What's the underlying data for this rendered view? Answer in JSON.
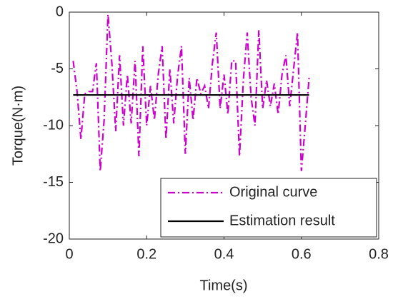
{
  "chart_data": {
    "type": "line",
    "xlabel": "Time(s)",
    "ylabel": "Torque(N·m)",
    "xlim": [
      0,
      0.8
    ],
    "xticks": [
      0,
      0.2,
      0.4,
      0.6,
      0.8
    ],
    "ylim": [
      -20,
      0
    ],
    "yticks": [
      0,
      -5,
      -10,
      -15,
      -20
    ],
    "legend": "lower right",
    "series": [
      {
        "name": "Original curve",
        "color": "#cc00cc",
        "dash": "dashdot",
        "x": [
          0.01,
          0.02,
          0.03,
          0.04,
          0.05,
          0.06,
          0.07,
          0.08,
          0.09,
          0.1,
          0.11,
          0.12,
          0.13,
          0.14,
          0.15,
          0.16,
          0.17,
          0.18,
          0.19,
          0.2,
          0.21,
          0.22,
          0.23,
          0.24,
          0.25,
          0.26,
          0.27,
          0.28,
          0.29,
          0.3,
          0.31,
          0.32,
          0.33,
          0.34,
          0.35,
          0.36,
          0.37,
          0.38,
          0.39,
          0.4,
          0.41,
          0.42,
          0.43,
          0.44,
          0.45,
          0.46,
          0.47,
          0.48,
          0.49,
          0.5,
          0.51,
          0.52,
          0.53,
          0.54,
          0.55,
          0.56,
          0.57,
          0.58,
          0.59,
          0.6,
          0.61,
          0.62
        ],
        "values": [
          -4.3,
          -7.0,
          -11.2,
          -7.2,
          -7.0,
          -7.0,
          -4.5,
          -14.0,
          -9.5,
          -0.2,
          -4.5,
          -10.5,
          -3.8,
          -10.0,
          -5.5,
          -9.8,
          -4.3,
          -12.7,
          -3.0,
          -10.0,
          -6.5,
          -9.5,
          -5.5,
          -3.0,
          -11.2,
          -5.0,
          -9.8,
          -5.6,
          -3.0,
          -12.5,
          -5.8,
          -9.5,
          -5.8,
          -7.2,
          -6.5,
          -8.5,
          -4.5,
          -1.8,
          -8.5,
          -5.5,
          -9.0,
          -4.3,
          -4.3,
          -12.7,
          -6.0,
          -1.8,
          -7.5,
          -10.0,
          -1.6,
          -8.5,
          -6.0,
          -8.3,
          -6.3,
          -9.0,
          -5.5,
          -3.8,
          -8.3,
          -5.0,
          -1.8,
          -14.0,
          -10.0,
          -5.8
        ]
      },
      {
        "name": "Estimation result",
        "color": "#000000",
        "dash": "solid",
        "x": [
          0.01,
          0.62
        ],
        "values": [
          -7.3,
          -7.3
        ]
      }
    ]
  }
}
